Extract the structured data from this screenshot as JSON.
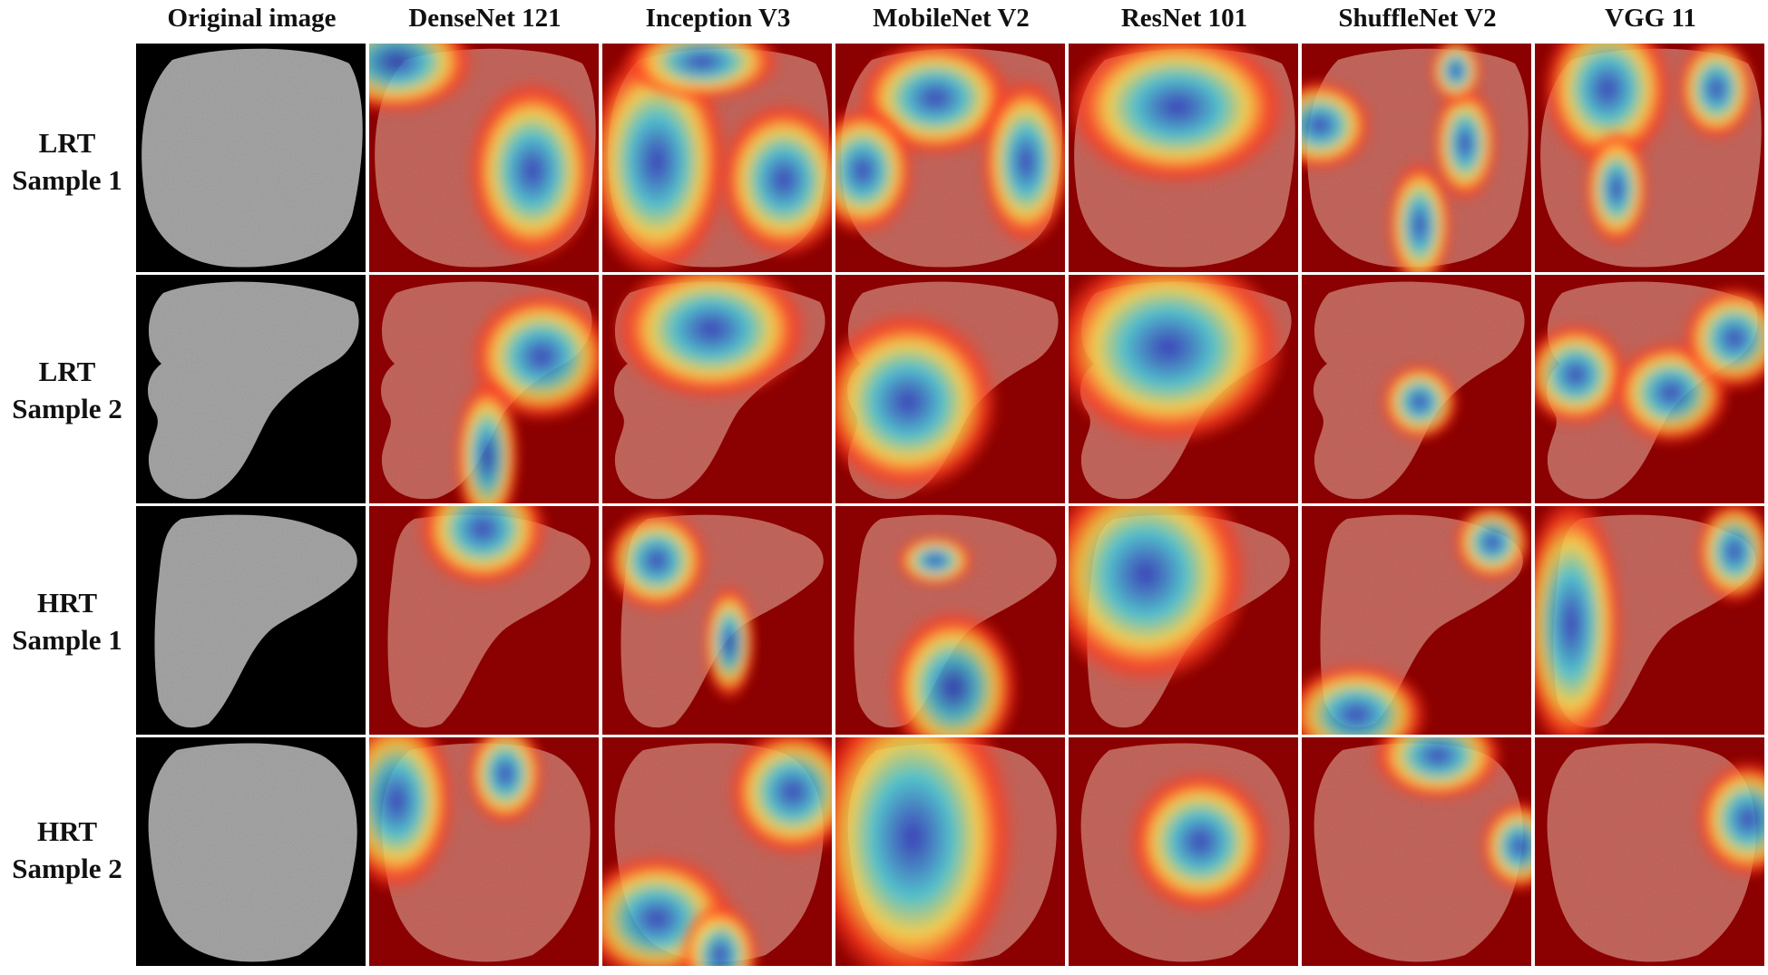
{
  "columns": {
    "original": "Original image",
    "densenet": "DenseNet 121",
    "inception": "Inception V3",
    "mobilenet": "MobileNet V2",
    "resnet": "ResNet 101",
    "shufflenet": "ShuffleNet V2",
    "vgg": "VGG 11"
  },
  "rows": [
    {
      "line1": "LRT",
      "line2": "Sample 1"
    },
    {
      "line1": "LRT",
      "line2": "Sample 2"
    },
    {
      "line1": "HRT",
      "line2": "Sample 1"
    },
    {
      "line1": "HRT",
      "line2": "Sample 2"
    }
  ],
  "colors": {
    "hot": "#8b0000",
    "warm": "#ff3b1f",
    "yellow": "#ffe04a",
    "cyan": "#3fd3e0",
    "blue": "#2636c8",
    "tissue": "#9a9a9a"
  }
}
